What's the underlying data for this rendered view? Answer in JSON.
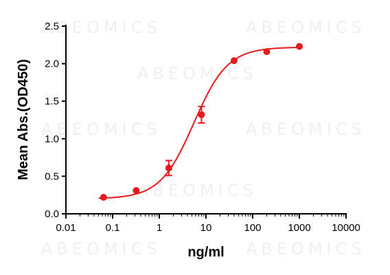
{
  "watermark": "ABEOMICS",
  "chart_data": {
    "type": "scatter",
    "title": "",
    "xlabel": "ng/ml",
    "ylabel": "Mean Abs.(OD450)",
    "x_scale": "log",
    "xlim": [
      0.01,
      10000
    ],
    "ylim": [
      0,
      2.5
    ],
    "x_ticks": [
      0.01,
      0.1,
      1,
      10,
      100,
      1000,
      10000
    ],
    "x_tick_labels": [
      "0.01",
      "0.1",
      "1",
      "10",
      "100",
      "1000",
      "10000"
    ],
    "y_ticks": [
      0,
      0.5,
      1,
      1.5,
      2,
      2.5
    ],
    "y_tick_labels": [
      "0.0",
      "0.5",
      "1.0",
      "1.5",
      "2.0",
      "2.5"
    ],
    "grid": false,
    "legend": "none",
    "series": [
      {
        "color": "#e41a1c",
        "points": [
          {
            "x": 0.064,
            "y": 0.22,
            "err": 0
          },
          {
            "x": 0.32,
            "y": 0.31,
            "err": 0
          },
          {
            "x": 1.6,
            "y": 0.61,
            "err": 0.1
          },
          {
            "x": 8,
            "y": 1.32,
            "err": 0.11
          },
          {
            "x": 40,
            "y": 2.04,
            "err": 0
          },
          {
            "x": 200,
            "y": 2.16,
            "err": 0
          },
          {
            "x": 1000,
            "y": 2.23,
            "err": 0
          }
        ],
        "fit": {
          "model": "4PL",
          "bottom": 0.2,
          "top": 2.22,
          "ec50": 5.5,
          "hill": 1.2
        }
      }
    ]
  }
}
